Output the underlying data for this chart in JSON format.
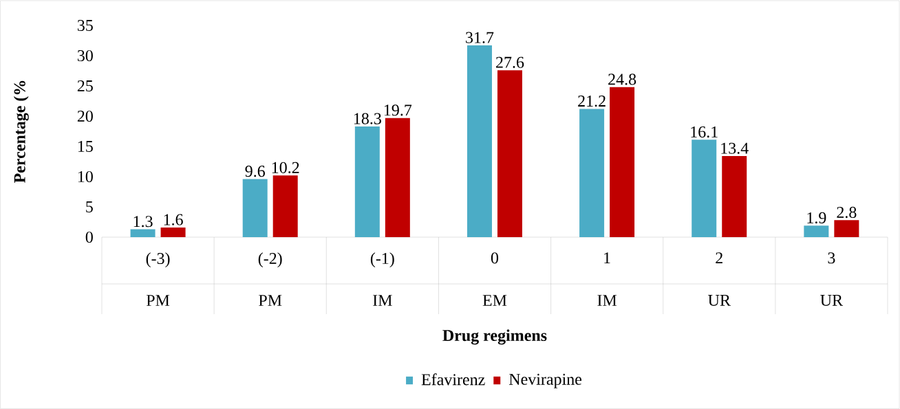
{
  "chart_data": {
    "type": "bar",
    "xlabel": "Drug regimens",
    "ylabel": "Percentage (%",
    "categories": [
      "(-3)",
      "(-2)",
      "(-1)",
      "0",
      "1",
      "2",
      "3"
    ],
    "annotations": [
      "PM",
      "PM",
      "IM",
      "EM",
      "IM",
      "UR",
      "UR"
    ],
    "series": [
      {
        "name": "Efavirenz",
        "color": "#4bacc6",
        "values": [
          1.3,
          9.6,
          18.3,
          31.7,
          21.2,
          16.1,
          1.9
        ]
      },
      {
        "name": "Nevirapine",
        "color": "#c00000",
        "values": [
          1.6,
          10.2,
          19.7,
          27.6,
          24.8,
          13.4,
          2.8
        ]
      }
    ],
    "ylim": [
      0,
      35
    ],
    "yticks": [
      0,
      5,
      10,
      15,
      20,
      25,
      30,
      35
    ],
    "data_labels": true,
    "grid": false,
    "legend": "bottom"
  }
}
